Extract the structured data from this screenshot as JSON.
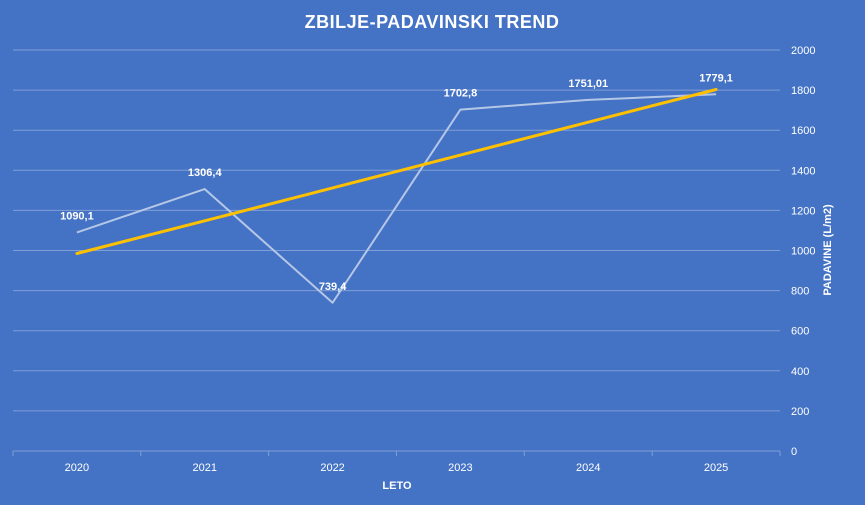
{
  "chart_data": {
    "type": "line",
    "title": "ZBILJE-PADAVINSKI TREND",
    "xlabel": "LETO",
    "ylabel": "PADAVINE (L/m2)",
    "categories": [
      "2020",
      "2021",
      "2022",
      "2023",
      "2024",
      "2025"
    ],
    "series": [
      {
        "values": [
          1090.1,
          1306.4,
          739.4,
          1702.8,
          1751.01,
          1779.1
        ],
        "data_labels": [
          "1090,1",
          "1306,4",
          "739,4",
          "1702,8",
          "1751,01",
          "1779,1"
        ],
        "color": "#b4c7e7"
      },
      {
        "kind": "linear trendline",
        "values": [
          985,
          1148,
          1312,
          1476,
          1640,
          1803
        ],
        "color": "#ffc000"
      }
    ],
    "ylim": [
      0,
      2000
    ],
    "yticks": [
      0,
      200,
      400,
      600,
      800,
      1000,
      1200,
      1400,
      1600,
      1800,
      2000
    ],
    "y_axis_position": "right",
    "grid": true,
    "legend": "none",
    "colors": {
      "background": "#4472c4",
      "gridline": "#7f9fd6",
      "text": "#ffffff"
    }
  }
}
